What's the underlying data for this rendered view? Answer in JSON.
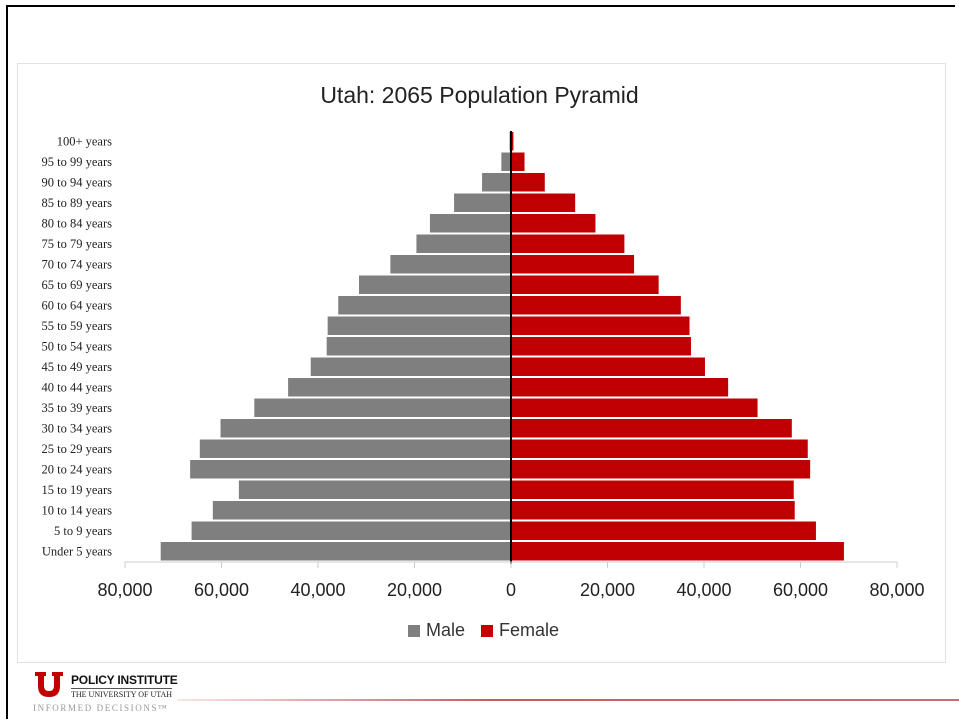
{
  "chart_data": {
    "type": "bar",
    "orientation": "horizontal-pyramid",
    "title": "Utah: 2065 Population Pyramid",
    "categories": [
      "100+ years",
      "95 to 99 years",
      "90 to 94 years",
      "85 to 89 years",
      "80 to 84 years",
      "75 to 79 years",
      "70 to 74 years",
      "65 to 69 years",
      "60 to 64 years",
      "55 to 59 years",
      "50 to 54 years",
      "45 to 49 years",
      "40 to 44 years",
      "35 to 39 years",
      "30 to 34 years",
      "25 to 29 years",
      "20 to 24 years",
      "15 to 19 years",
      "10 to 14 years",
      "5 to 9 years",
      "Under 5 years"
    ],
    "series": [
      {
        "name": "Male",
        "color": "#7f7f7f",
        "values": [
          300,
          2000,
          6000,
          11800,
          16800,
          19600,
          25000,
          31500,
          35800,
          38000,
          38200,
          41500,
          46200,
          53200,
          60200,
          64500,
          66500,
          56400,
          61800,
          66200,
          72600
        ]
      },
      {
        "name": "Female",
        "color": "#c00000",
        "values": [
          500,
          2800,
          7000,
          13300,
          17500,
          23500,
          25500,
          30600,
          35200,
          37000,
          37300,
          40200,
          45000,
          51100,
          58200,
          61500,
          62000,
          58600,
          58800,
          63200,
          69000
        ]
      }
    ],
    "xticks": [
      "80,000",
      "60,000",
      "40,000",
      "20,000",
      "0",
      "20,000",
      "40,000",
      "60,000",
      "80,000"
    ],
    "xlim": [
      -80000,
      80000
    ],
    "grid": false,
    "legend": "bottom"
  },
  "legend": {
    "male": "Male",
    "female": "Female"
  },
  "logo": {
    "small_text": "",
    "name": "POLICY INSTITUTE",
    "university": "THE UNIVERSITY OF UTAH",
    "tagline": "INFORMED DECISIONS™"
  }
}
